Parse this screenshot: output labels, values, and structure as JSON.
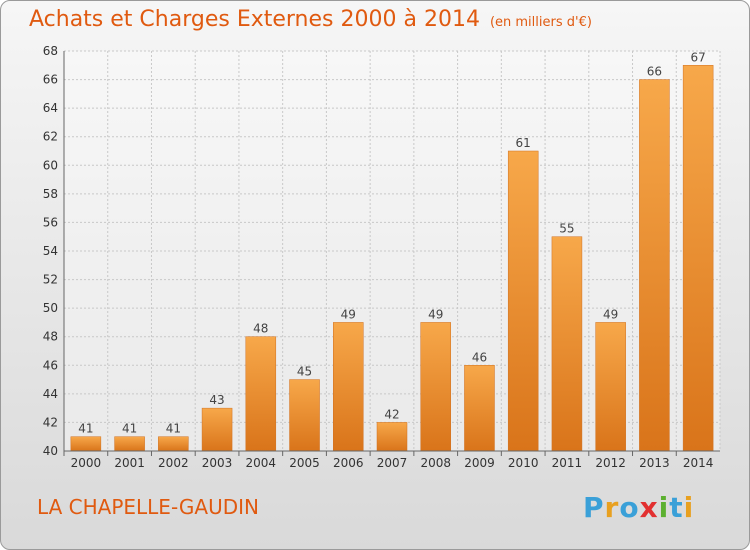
{
  "title": "Achats et Charges Externes 2000 à 2014",
  "unit": "(en milliers d'€)",
  "commune": "LA CHAPELLE-GAUDIN",
  "logo": {
    "letters": [
      "P",
      "r",
      "o",
      "x",
      "i",
      "t",
      "i"
    ],
    "colors": [
      "#3aa0d8",
      "#e8a020",
      "#3aa0d8",
      "#e23030",
      "#5cb030",
      "#3aa0d8",
      "#e8a020"
    ]
  },
  "chart_data": {
    "type": "bar",
    "title": "Achats et Charges Externes 2000 à 2014",
    "categories": [
      "2000",
      "2001",
      "2002",
      "2003",
      "2004",
      "2005",
      "2006",
      "2007",
      "2008",
      "2009",
      "2010",
      "2011",
      "2012",
      "2013",
      "2014"
    ],
    "values": [
      41,
      41,
      41,
      43,
      48,
      45,
      49,
      42,
      49,
      46,
      61,
      55,
      49,
      66,
      67
    ],
    "ylim": [
      40,
      68
    ],
    "yticks": [
      40,
      42,
      44,
      46,
      48,
      50,
      52,
      54,
      56,
      58,
      60,
      62,
      64,
      66,
      68
    ],
    "grid": true,
    "bar_color": "#f29a3c"
  }
}
